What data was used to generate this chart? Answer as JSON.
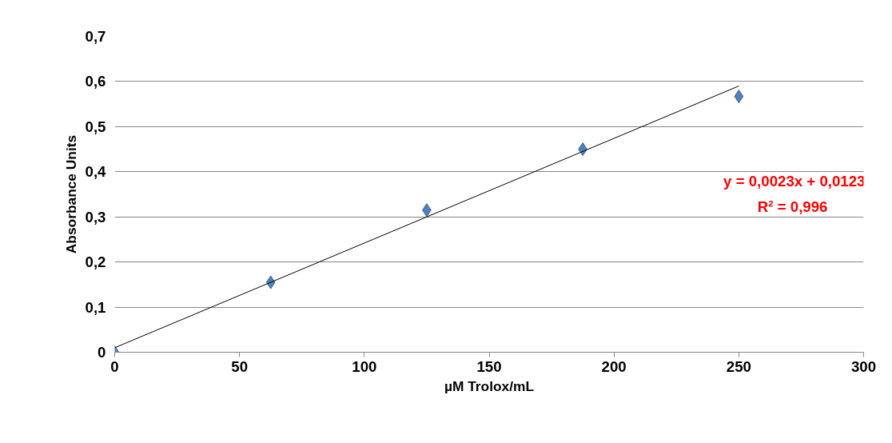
{
  "chart_data": {
    "type": "scatter",
    "xlabel": "µM Trolox/mL",
    "ylabel": "Absorbance Units",
    "series": [
      {
        "color": "#4f81bd",
        "x": [
          0,
          62.5,
          125,
          187.5,
          250
        ],
        "values": [
          0,
          0.155,
          0.315,
          0.45,
          0.567
        ]
      },
      {
        "type": "line",
        "marker": "none",
        "color": "#000000",
        "x": [
          0,
          250
        ],
        "values": [
          0.01,
          0.59
        ]
      }
    ],
    "annotations": [
      "y = 0,0023x + 0,0123",
      "R² = 0,996"
    ],
    "xlim": [
      0,
      300
    ],
    "xticks": [
      0,
      50,
      100,
      150,
      200,
      250,
      300
    ],
    "ylim": [
      0,
      0.7
    ],
    "yticks": [
      0,
      {
        "value": 0.1,
        "label": "0,1"
      },
      {
        "value": 0.2,
        "label": "0,2"
      },
      {
        "value": 0.3,
        "label": "0,3"
      },
      {
        "value": 0.4,
        "label": "0,4"
      },
      {
        "value": 0.5,
        "label": "0,5"
      },
      {
        "value": 0.6,
        "label": "0,6"
      },
      {
        "value": 0.7,
        "label": "0,7"
      }
    ],
    "grid": "y",
    "marker": "diamond"
  }
}
